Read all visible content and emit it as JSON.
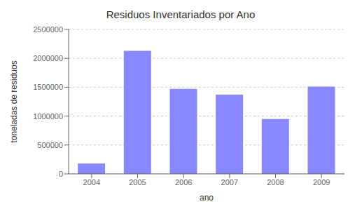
{
  "chart_data": {
    "type": "bar",
    "title": "Residuos Inventariados por Ano",
    "xlabel": "ano",
    "ylabel": "toneladas de residuos",
    "categories": [
      "2004",
      "2005",
      "2006",
      "2007",
      "2008",
      "2009"
    ],
    "values": [
      179000,
      2130000,
      1470000,
      1370000,
      950000,
      1510000
    ],
    "color": "#8888ff",
    "ylim": [
      0,
      2500000
    ],
    "yticks": [
      0,
      500000,
      1000000,
      1500000,
      2000000,
      2500000
    ],
    "grid": true
  }
}
